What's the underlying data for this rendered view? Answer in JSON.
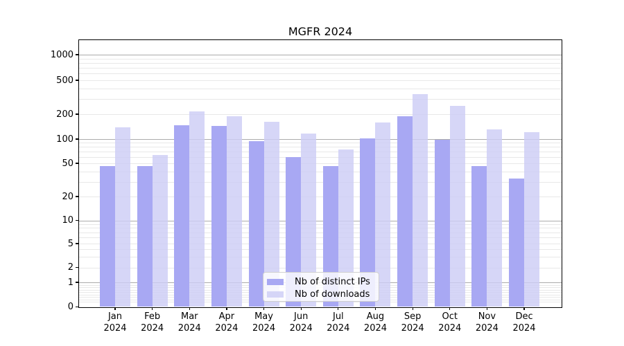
{
  "title": "MGFR 2024",
  "chart_data": {
    "type": "bar",
    "title": "MGFR 2024",
    "categories": [
      "Jan",
      "Feb",
      "Mar",
      "Apr",
      "May",
      "Jun",
      "Jul",
      "Aug",
      "Sep",
      "Oct",
      "Nov",
      "Dec"
    ],
    "year_label": "2024",
    "series": [
      {
        "name": "Nb of distinct IPs",
        "color": "#a8a8f3",
        "values": [
          46,
          46,
          148,
          145,
          95,
          60,
          46,
          101,
          188,
          98,
          46,
          33
        ]
      },
      {
        "name": "Nb of downloads",
        "color": "#cdcdf5",
        "values": [
          138,
          63,
          215,
          187,
          163,
          117,
          75,
          159,
          344,
          251,
          132,
          121
        ]
      }
    ],
    "yscale": "symlog",
    "yticks": [
      0,
      1,
      2,
      5,
      10,
      20,
      50,
      100,
      200,
      500,
      1000
    ],
    "ylim": [
      0,
      1430
    ],
    "xlabel": "",
    "ylabel": "",
    "grid": true,
    "legend_position": "lower center"
  },
  "legend": {
    "items": [
      "Nb of distinct IPs",
      "Nb of downloads"
    ]
  },
  "colors": {
    "ips_bar": "#a8a8f3",
    "downloads_bar": "#cdcdf5",
    "major_gridline": "#ababab",
    "minor_gridline": "#e8e8e8",
    "axis_line": "#000000",
    "background": "#ffffff"
  }
}
